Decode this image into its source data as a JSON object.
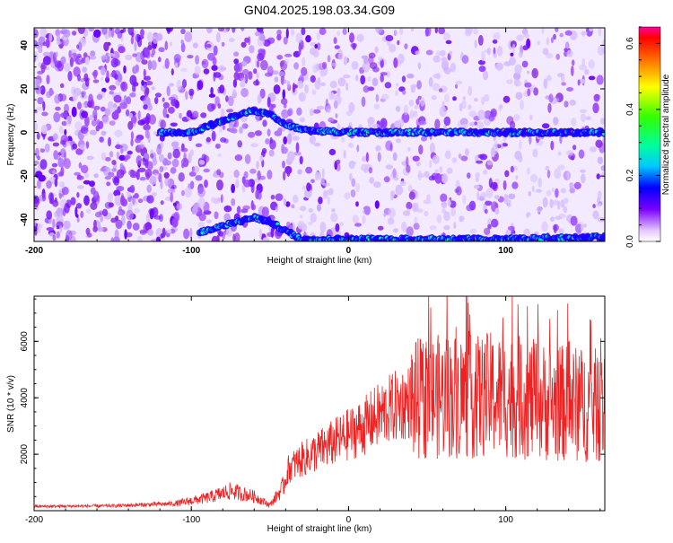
{
  "title": "GN04.2025.198.03.34.G09",
  "chart_data": [
    {
      "type": "heatmap",
      "xlabel": "Height of straight line (km)",
      "ylabel": "Frequency (Hz)",
      "xlim": [
        -200,
        163
      ],
      "ylim": [
        -50,
        48
      ],
      "x_ticks": [
        -200,
        -100,
        0,
        100
      ],
      "y_ticks": [
        -40,
        -20,
        0,
        20,
        40
      ],
      "colorbar": {
        "label": "Normalized spectral amplitude",
        "range": [
          0,
          0.65
        ],
        "ticks": [
          0.0,
          0.2,
          0.4,
          0.6
        ],
        "tick_labels": [
          "0.0",
          "0.2",
          "0.4",
          "0.6"
        ]
      },
      "ridges": [
        {
          "x": [
            -120,
            -100,
            -85,
            -70,
            -60,
            -50,
            -40,
            -30,
            0,
            50,
            100,
            163
          ],
          "y": [
            0,
            0,
            4,
            8,
            10,
            8,
            4,
            1,
            0,
            0,
            0,
            0
          ]
        },
        {
          "x": [
            -95,
            -80,
            -60,
            -50,
            -40,
            -30,
            0,
            100,
            163
          ],
          "y": [
            -46,
            -43,
            -39,
            -41,
            -45,
            -49,
            -49,
            -49,
            -48
          ]
        }
      ]
    },
    {
      "type": "line",
      "xlabel": "Height of straight line (km)",
      "ylabel": "SNR (10 * v/v)",
      "xlim": [
        -200,
        163
      ],
      "ylim": [
        0,
        7600
      ],
      "x_ticks": [
        -200,
        -100,
        0,
        100
      ],
      "y_ticks": [
        2000,
        4000,
        6000
      ],
      "grid": false,
      "series": [
        {
          "color": "#ee2222",
          "envelope_x": [
            -200,
            -150,
            -110,
            -90,
            -75,
            -60,
            -50,
            -42,
            -38,
            -30,
            -20,
            -10,
            0,
            10,
            20,
            30,
            40,
            50,
            60,
            70,
            80,
            90,
            100,
            110,
            120,
            130,
            140,
            150,
            163
          ],
          "envelope_y": [
            150,
            170,
            250,
            450,
            700,
            500,
            200,
            800,
            1500,
            1800,
            2100,
            2400,
            2700,
            3000,
            3400,
            3700,
            3900,
            4000,
            4050,
            4100,
            4000,
            4100,
            4050,
            4000,
            3900,
            3800,
            3800,
            3750,
            3700
          ]
        }
      ]
    }
  ]
}
